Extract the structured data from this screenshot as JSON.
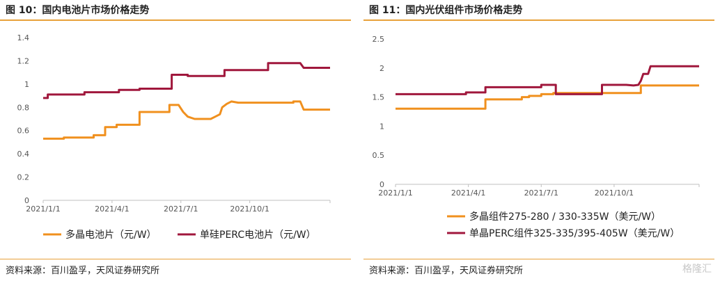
{
  "left": {
    "title": "图 10：国内电池片市场价格走势",
    "source": "资料来源：百川盈孚，天风证券研究所"
  },
  "right": {
    "title": "图 11：国内光伏组件市场价格走势",
    "source": "资料来源：百川盈孚，天风证券研究所"
  },
  "watermark": "格隆汇",
  "colors": {
    "accent": "#e8a13a",
    "orange": "#f0901e",
    "maroon": "#a0173c"
  },
  "chart_data": [
    {
      "type": "line",
      "title": "",
      "xlabel": "",
      "ylabel": "",
      "x_tick_labels": [
        "2021/1/1",
        "2021/4/1",
        "2021/7/1",
        "2021/10/1"
      ],
      "x_tick_positions": [
        0,
        3,
        6,
        9
      ],
      "xlim": [
        0,
        12.5
      ],
      "y_tick_labels": [
        "0",
        "0.2",
        "0.4",
        "0.6",
        "0.8",
        "1",
        "1.2",
        "1.4"
      ],
      "ylim": [
        0,
        1.4
      ],
      "grid": false,
      "legend_position": "bottom",
      "series": [
        {
          "name": "多晶电池片（元/W）",
          "color": "#f0901e",
          "points": [
            [
              0,
              0.53
            ],
            [
              0.9,
              0.53
            ],
            [
              0.9,
              0.54
            ],
            [
              2.2,
              0.54
            ],
            [
              2.2,
              0.56
            ],
            [
              2.7,
              0.56
            ],
            [
              2.7,
              0.63
            ],
            [
              3.2,
              0.63
            ],
            [
              3.2,
              0.65
            ],
            [
              4.2,
              0.65
            ],
            [
              4.2,
              0.76
            ],
            [
              5.5,
              0.76
            ],
            [
              5.5,
              0.82
            ],
            [
              5.9,
              0.82
            ],
            [
              6.1,
              0.76
            ],
            [
              6.3,
              0.72
            ],
            [
              6.6,
              0.7
            ],
            [
              7.3,
              0.7
            ],
            [
              7.5,
              0.72
            ],
            [
              7.7,
              0.74
            ],
            [
              7.8,
              0.8
            ],
            [
              8,
              0.83
            ],
            [
              8.2,
              0.85
            ],
            [
              8.5,
              0.84
            ],
            [
              10.9,
              0.84
            ],
            [
              10.9,
              0.85
            ],
            [
              11.2,
              0.85
            ],
            [
              11.35,
              0.78
            ],
            [
              12.5,
              0.78
            ]
          ]
        },
        {
          "name": "单硅PERC电池片（元/W）",
          "color": "#a0173c",
          "points": [
            [
              0,
              0.88
            ],
            [
              0.2,
              0.88
            ],
            [
              0.2,
              0.91
            ],
            [
              1.8,
              0.91
            ],
            [
              1.8,
              0.93
            ],
            [
              3.3,
              0.93
            ],
            [
              3.3,
              0.95
            ],
            [
              4.2,
              0.95
            ],
            [
              4.2,
              0.96
            ],
            [
              5.6,
              0.96
            ],
            [
              5.6,
              1.08
            ],
            [
              6.3,
              1.08
            ],
            [
              6.3,
              1.07
            ],
            [
              7.9,
              1.07
            ],
            [
              7.9,
              1.12
            ],
            [
              9.8,
              1.12
            ],
            [
              9.8,
              1.18
            ],
            [
              11.2,
              1.18
            ],
            [
              11.35,
              1.14
            ],
            [
              12.5,
              1.14
            ]
          ]
        }
      ]
    },
    {
      "type": "line",
      "title": "",
      "xlabel": "",
      "ylabel": "",
      "x_tick_labels": [
        "2021/1/1",
        "2021/4/1",
        "2021/7/1",
        "2021/10/1"
      ],
      "x_tick_positions": [
        0,
        3,
        6,
        9
      ],
      "xlim": [
        0,
        12.5
      ],
      "y_tick_labels": [
        "0",
        "0.5",
        "1",
        "1.5",
        "2",
        "2.5"
      ],
      "ylim": [
        0,
        2.5
      ],
      "grid": false,
      "legend_position": "bottom",
      "series": [
        {
          "name": "多晶组件275-280 / 330-335W（美元/W）",
          "color": "#f0901e",
          "points": [
            [
              0,
              1.3
            ],
            [
              3.7,
              1.3
            ],
            [
              3.7,
              1.46
            ],
            [
              5.2,
              1.46
            ],
            [
              5.2,
              1.5
            ],
            [
              5.5,
              1.5
            ],
            [
              5.5,
              1.52
            ],
            [
              6,
              1.52
            ],
            [
              6,
              1.55
            ],
            [
              6.5,
              1.55
            ],
            [
              6.5,
              1.57
            ],
            [
              10.1,
              1.57
            ],
            [
              10.1,
              1.7
            ],
            [
              12.5,
              1.7
            ]
          ]
        },
        {
          "name": "单晶PERC组件325-335/395-405W（美元/W）",
          "color": "#a0173c",
          "points": [
            [
              0,
              1.55
            ],
            [
              2.9,
              1.55
            ],
            [
              2.9,
              1.58
            ],
            [
              3.7,
              1.58
            ],
            [
              3.7,
              1.67
            ],
            [
              6,
              1.67
            ],
            [
              6,
              1.71
            ],
            [
              6.6,
              1.71
            ],
            [
              6.6,
              1.55
            ],
            [
              8.5,
              1.55
            ],
            [
              8.5,
              1.71
            ],
            [
              9.5,
              1.71
            ],
            [
              9.8,
              1.7
            ],
            [
              10,
              1.71
            ],
            [
              10.1,
              1.78
            ],
            [
              10.2,
              1.9
            ],
            [
              10.4,
              1.9
            ],
            [
              10.5,
              2.03
            ],
            [
              12.5,
              2.03
            ]
          ]
        }
      ]
    }
  ]
}
